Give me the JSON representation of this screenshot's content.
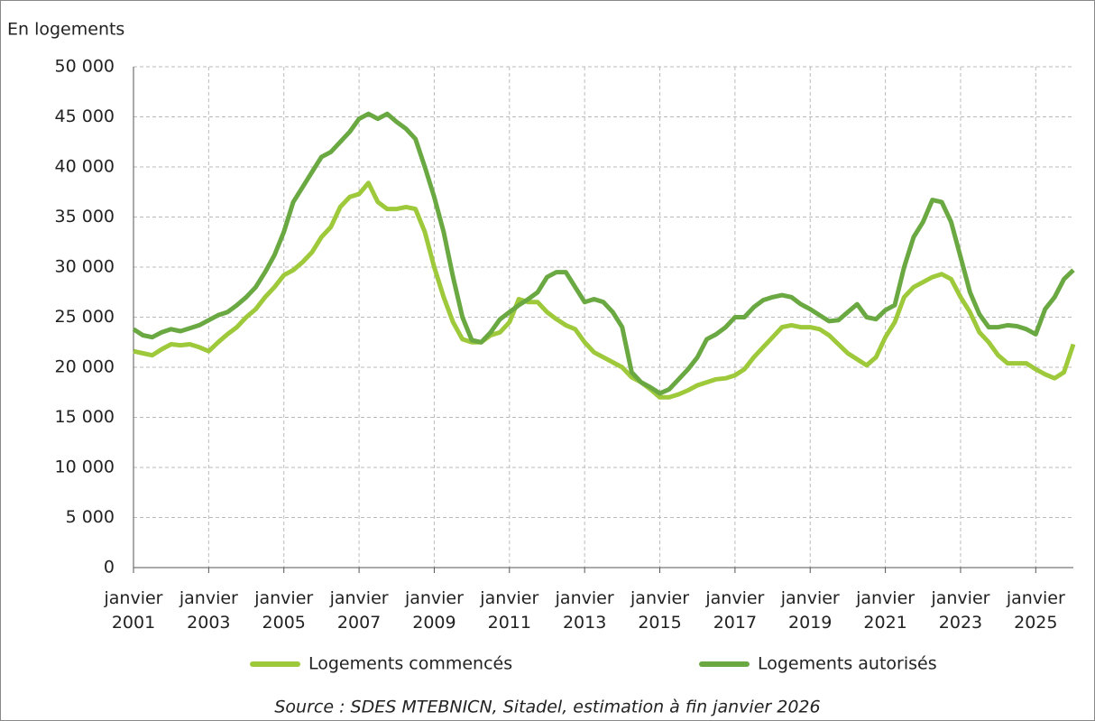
{
  "chart_data": {
    "type": "line",
    "y_label": "En logements",
    "source": "Source : SDES MTEBNICN, Sitadel, estimation à fin janvier 2026",
    "legend": "bottom",
    "grid": true,
    "x": [
      "2001-01",
      "2001-04",
      "2001-07",
      "2001-10",
      "2002-01",
      "2002-04",
      "2002-07",
      "2002-10",
      "2003-01",
      "2003-04",
      "2003-07",
      "2003-10",
      "2004-01",
      "2004-04",
      "2004-07",
      "2004-10",
      "2005-01",
      "2005-04",
      "2005-07",
      "2005-10",
      "2006-01",
      "2006-04",
      "2006-07",
      "2006-10",
      "2007-01",
      "2007-04",
      "2007-07",
      "2007-10",
      "2008-01",
      "2008-04",
      "2008-07",
      "2008-10",
      "2009-01",
      "2009-04",
      "2009-07",
      "2009-10",
      "2010-01",
      "2010-04",
      "2010-07",
      "2010-10",
      "2011-01",
      "2011-04",
      "2011-07",
      "2011-10",
      "2012-01",
      "2012-04",
      "2012-07",
      "2012-10",
      "2013-01",
      "2013-04",
      "2013-07",
      "2013-10",
      "2014-01",
      "2014-04",
      "2014-07",
      "2014-10",
      "2015-01",
      "2015-04",
      "2015-07",
      "2015-10",
      "2016-01",
      "2016-04",
      "2016-07",
      "2016-10",
      "2017-01",
      "2017-04",
      "2017-07",
      "2017-10",
      "2018-01",
      "2018-04",
      "2018-07",
      "2018-10",
      "2019-01",
      "2019-04",
      "2019-07",
      "2019-10",
      "2020-01",
      "2020-04",
      "2020-07",
      "2020-10",
      "2021-01",
      "2021-04",
      "2021-07",
      "2021-10",
      "2022-01",
      "2022-04",
      "2022-07",
      "2022-10",
      "2023-01",
      "2023-04",
      "2023-07",
      "2023-10",
      "2024-01",
      "2024-04",
      "2024-07",
      "2024-10",
      "2025-01",
      "2025-04",
      "2025-07",
      "2025-10",
      "2026-01"
    ],
    "series": [
      {
        "name": "Logements commencés",
        "color": "#9dc93b",
        "values": [
          21600,
          21400,
          21200,
          21800,
          22300,
          22200,
          22300,
          22000,
          21600,
          22500,
          23300,
          24000,
          25000,
          25800,
          27000,
          28000,
          29200,
          29700,
          30500,
          31500,
          33000,
          34000,
          36000,
          37000,
          37300,
          38400,
          36500,
          35800,
          35800,
          36000,
          35800,
          33500,
          30000,
          27000,
          24500,
          22800,
          22500,
          22500,
          23200,
          23500,
          24500,
          26800,
          26500,
          26500,
          25500,
          24800,
          24200,
          23800,
          22500,
          21500,
          21000,
          20500,
          20000,
          19000,
          18500,
          17800,
          17000,
          17000,
          17300,
          17700,
          18200,
          18500,
          18800,
          18900,
          19200,
          19800,
          21000,
          22000,
          23000,
          24000,
          24200,
          24000,
          24000,
          23800,
          23200,
          22300,
          21400,
          20800,
          20200,
          21000,
          23000,
          24500,
          27000,
          28000,
          28500,
          29000,
          29300,
          28800,
          27000,
          25500,
          23500,
          22500,
          21200,
          20400,
          20400,
          20400,
          19800,
          19300,
          18900,
          19500,
          22300
        ]
      },
      {
        "name": "Logements autorisés",
        "color": "#6aa842",
        "values": [
          23800,
          23200,
          23000,
          23500,
          23800,
          23600,
          23900,
          24200,
          24700,
          25200,
          25500,
          26200,
          27000,
          28000,
          29500,
          31200,
          33500,
          36500,
          38000,
          39500,
          41000,
          41500,
          42500,
          43500,
          44800,
          45300,
          44800,
          45300,
          44500,
          43800,
          42800,
          40000,
          37000,
          33500,
          29000,
          25000,
          22700,
          22500,
          23500,
          24800,
          25500,
          26200,
          26800,
          27500,
          29000,
          29500,
          29500,
          28000,
          26500,
          26800,
          26500,
          25500,
          24000,
          19500,
          18500,
          18000,
          17400,
          17800,
          18800,
          19800,
          21000,
          22800,
          23300,
          24000,
          25000,
          25000,
          26000,
          26700,
          27000,
          27200,
          27000,
          26300,
          25800,
          25200,
          24600,
          24700,
          25500,
          26300,
          25000,
          24800,
          25700,
          26200,
          30000,
          33000,
          34500,
          36700,
          36500,
          34500,
          31000,
          27500,
          25300,
          24000,
          24000,
          24200,
          24100,
          23800,
          23300,
          25800,
          27000,
          28800,
          29700
        ]
      }
    ],
    "xlim": [
      "2001-01",
      "2026-01"
    ],
    "xticks": [
      {
        "value": "2001-01",
        "label": "janvier 2001"
      },
      {
        "value": "2003-01",
        "label": "janvier 2003"
      },
      {
        "value": "2005-01",
        "label": "janvier 2005"
      },
      {
        "value": "2007-01",
        "label": "janvier 2007"
      },
      {
        "value": "2009-01",
        "label": "janvier 2009"
      },
      {
        "value": "2011-01",
        "label": "janvier 2011"
      },
      {
        "value": "2013-01",
        "label": "janvier 2013"
      },
      {
        "value": "2015-01",
        "label": "janvier 2015"
      },
      {
        "value": "2017-01",
        "label": "janvier 2017"
      },
      {
        "value": "2019-01",
        "label": "janvier 2019"
      },
      {
        "value": "2021-01",
        "label": "janvier 2021"
      },
      {
        "value": "2023-01",
        "label": "janvier 2023"
      },
      {
        "value": "2025-01",
        "label": "janvier 2025"
      }
    ],
    "ylim": [
      0,
      50000
    ],
    "yticks": [
      0,
      {
        "value": 5000,
        "label": "5 000"
      },
      {
        "value": 10000,
        "label": "10 000"
      },
      {
        "value": 15000,
        "label": "15 000"
      },
      {
        "value": 20000,
        "label": "20 000"
      },
      {
        "value": 25000,
        "label": "25 000"
      },
      {
        "value": 30000,
        "label": "30 000"
      },
      {
        "value": 35000,
        "label": "35 000"
      },
      {
        "value": 40000,
        "label": "40 000"
      },
      {
        "value": 45000,
        "label": "45 000"
      },
      {
        "value": 50000,
        "label": "50 000"
      }
    ]
  }
}
